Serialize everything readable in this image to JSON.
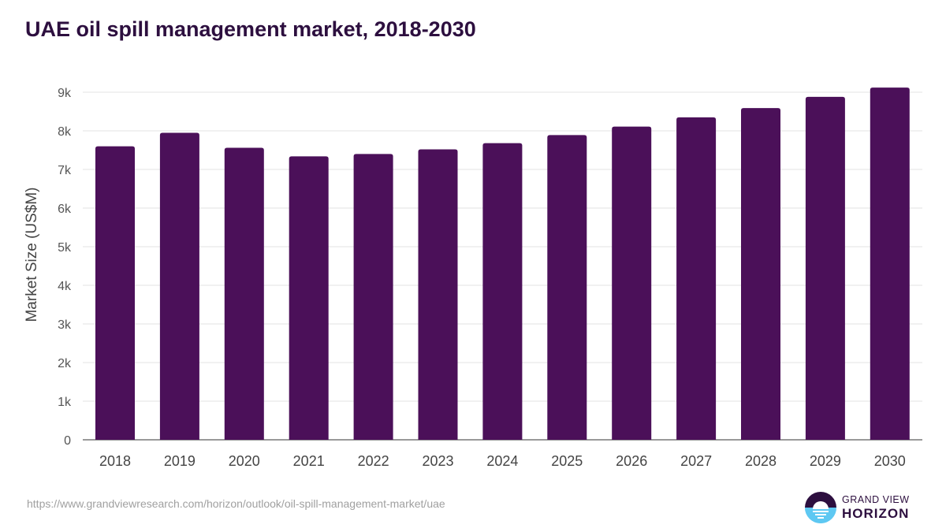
{
  "chart_data": {
    "type": "bar",
    "title": "UAE oil spill management market, 2018-2030",
    "xlabel": "",
    "ylabel": "Market Size (US$M)",
    "ylim": [
      0,
      9000
    ],
    "yticks": [
      0,
      1000,
      2000,
      3000,
      4000,
      5000,
      6000,
      7000,
      8000,
      9000
    ],
    "ytick_labels": [
      "0",
      "1k",
      "2k",
      "3k",
      "4k",
      "5k",
      "6k",
      "7k",
      "8k",
      "9k"
    ],
    "categories": [
      "2018",
      "2019",
      "2020",
      "2021",
      "2022",
      "2023",
      "2024",
      "2025",
      "2026",
      "2027",
      "2028",
      "2029",
      "2030"
    ],
    "values": [
      7600,
      7950,
      7560,
      7340,
      7400,
      7520,
      7680,
      7890,
      8110,
      8350,
      8590,
      8880,
      9120
    ],
    "grid": true,
    "bar_color": "#4b1059"
  },
  "source_url": "https://www.grandviewresearch.com/horizon/outlook/oil-spill-management-market/uae",
  "logo": {
    "line1": "GRAND VIEW",
    "line2": "HORIZON"
  }
}
